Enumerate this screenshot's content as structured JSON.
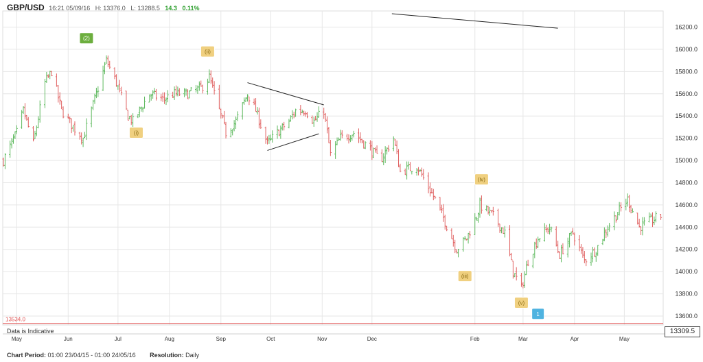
{
  "header": {
    "symbol": "GBP/USD",
    "time": "16:21 05/09/16",
    "high": "H: 13376.0",
    "low": "L: 13288.5",
    "change": "14.3",
    "change_pct": "0.11%",
    "positive_color": "#2a9d2a"
  },
  "footer": {
    "period_label": "Chart Period:",
    "period_value": "01:00 23/04/15 - 01:00 24/05/16",
    "resolution_label": "Resolution:",
    "resolution_value": "Daily",
    "indicative": "Data is Indicative"
  },
  "last_price": "13309.5",
  "chart_data": {
    "type": "ohlc",
    "y_axis": {
      "ticks": [
        13600,
        13800,
        14000,
        14200,
        14400,
        14600,
        14800,
        15000,
        15200,
        15400,
        15600,
        15800,
        16000,
        16200
      ],
      "tick_labels": [
        "13600.0",
        "13800.0",
        "14000.0",
        "14200.0",
        "14400.0",
        "14600.0",
        "14800.0",
        "15000.0",
        "15200.0",
        "15400.0",
        "15600.0",
        "15800.0",
        "16000.0",
        "16200.0"
      ]
    },
    "x_axis": {
      "range": [
        "2015-04-23",
        "2016-05-24"
      ],
      "months": [
        {
          "label": "May",
          "date": "2015-05-01"
        },
        {
          "label": "Jun",
          "date": "2015-06-01"
        },
        {
          "label": "Jul",
          "date": "2015-07-01"
        },
        {
          "label": "Aug",
          "date": "2015-08-01"
        },
        {
          "label": "Sep",
          "date": "2015-09-01"
        },
        {
          "label": "Oct",
          "date": "2015-10-01"
        },
        {
          "label": "Nov",
          "date": "2015-11-01"
        },
        {
          "label": "Dec",
          "date": "2015-12-01"
        },
        {
          "label": "Feb",
          "date": "2016-02-01"
        },
        {
          "label": "Mar",
          "date": "2016-03-01"
        },
        {
          "label": "Apr",
          "date": "2016-04-01"
        },
        {
          "label": "May",
          "date": "2016-05-01"
        }
      ]
    },
    "grid": true,
    "up_color": "#5cb85c",
    "down_color": "#e06060",
    "price_path": [
      {
        "date": "2015-04-23",
        "close": 15000
      },
      {
        "date": "2015-05-01",
        "close": 15250
      },
      {
        "date": "2015-05-05",
        "close": 15450
      },
      {
        "date": "2015-05-11",
        "close": 15150
      },
      {
        "date": "2015-05-18",
        "close": 15700
      },
      {
        "date": "2015-05-22",
        "close": 15800
      },
      {
        "date": "2015-05-28",
        "close": 15450
      },
      {
        "date": "2015-06-04",
        "close": 15300
      },
      {
        "date": "2015-06-10",
        "close": 15200
      },
      {
        "date": "2015-06-18",
        "close": 15600
      },
      {
        "date": "2015-06-24",
        "close": 15900
      },
      {
        "date": "2015-06-30",
        "close": 15700
      },
      {
        "date": "2015-07-07",
        "close": 15400
      },
      {
        "date": "2015-07-10",
        "close": 15350
      },
      {
        "date": "2015-07-20",
        "close": 15600
      },
      {
        "date": "2015-07-28",
        "close": 15550
      },
      {
        "date": "2015-08-04",
        "close": 15600
      },
      {
        "date": "2015-08-12",
        "close": 15600
      },
      {
        "date": "2015-08-20",
        "close": 15650
      },
      {
        "date": "2015-08-25",
        "close": 15750
      },
      {
        "date": "2015-08-31",
        "close": 15450
      },
      {
        "date": "2015-09-04",
        "close": 15250
      },
      {
        "date": "2015-09-10",
        "close": 15350
      },
      {
        "date": "2015-09-17",
        "close": 15600
      },
      {
        "date": "2015-09-22",
        "close": 15450
      },
      {
        "date": "2015-09-29",
        "close": 15150
      },
      {
        "date": "2015-10-05",
        "close": 15250
      },
      {
        "date": "2015-10-12",
        "close": 15350
      },
      {
        "date": "2015-10-16",
        "close": 15450
      },
      {
        "date": "2015-10-22",
        "close": 15450
      },
      {
        "date": "2015-10-27",
        "close": 15350
      },
      {
        "date": "2015-11-02",
        "close": 15450
      },
      {
        "date": "2015-11-06",
        "close": 15050
      },
      {
        "date": "2015-11-12",
        "close": 15200
      },
      {
        "date": "2015-11-20",
        "close": 15250
      },
      {
        "date": "2015-11-30",
        "close": 15100
      },
      {
        "date": "2015-12-06",
        "close": 15000
      },
      {
        "date": "2015-12-14",
        "close": 15200
      },
      {
        "date": "2015-12-18",
        "close": 14900
      },
      {
        "date": "2015-12-28",
        "close": 14950
      },
      {
        "date": "2016-01-08",
        "close": 14650
      },
      {
        "date": "2016-01-14",
        "close": 14450
      },
      {
        "date": "2016-01-21",
        "close": 14200
      },
      {
        "date": "2016-01-27",
        "close": 14300
      },
      {
        "date": "2016-02-02",
        "close": 14500
      },
      {
        "date": "2016-02-04",
        "close": 14600
      },
      {
        "date": "2016-02-12",
        "close": 14500
      },
      {
        "date": "2016-02-19",
        "close": 14350
      },
      {
        "date": "2016-02-24",
        "close": 14000
      },
      {
        "date": "2016-02-29",
        "close": 13850
      },
      {
        "date": "2016-03-04",
        "close": 14100
      },
      {
        "date": "2016-03-10",
        "close": 14300
      },
      {
        "date": "2016-03-17",
        "close": 14400
      },
      {
        "date": "2016-03-23",
        "close": 14150
      },
      {
        "date": "2016-03-31",
        "close": 14350
      },
      {
        "date": "2016-04-07",
        "close": 14100
      },
      {
        "date": "2016-04-14",
        "close": 14200
      },
      {
        "date": "2016-04-21",
        "close": 14400
      },
      {
        "date": "2016-04-28",
        "close": 14550
      },
      {
        "date": "2016-05-03",
        "close": 14650
      },
      {
        "date": "2016-05-10",
        "close": 14400
      },
      {
        "date": "2016-05-16",
        "close": 14450
      },
      {
        "date": "2016-05-23",
        "close": 14500
      }
    ],
    "reference_line": {
      "value": 13534.0,
      "label": "13534.0",
      "color": "#e05050"
    },
    "trendlines": [
      {
        "points": [
          {
            "date": "2015-09-17",
            "value": 15700
          },
          {
            "date": "2015-11-02",
            "value": 15500
          }
        ]
      },
      {
        "points": [
          {
            "date": "2015-09-29",
            "value": 15090
          },
          {
            "date": "2015-10-30",
            "value": 15240
          }
        ]
      },
      {
        "points": [
          {
            "date": "2015-12-13",
            "value": 16320
          },
          {
            "date": "2016-03-22",
            "value": 16190
          }
        ]
      }
    ],
    "annotations": [
      {
        "label": "(2)",
        "date": "2015-06-12",
        "value": 16100,
        "color": "#6cae3e",
        "text_color": "#ffffff"
      },
      {
        "label": "(i)",
        "date": "2015-07-12",
        "value": 15250,
        "color": "#f0d080",
        "text_color": "#8a6a10"
      },
      {
        "label": "(ii)",
        "date": "2015-08-24",
        "value": 15980,
        "color": "#f0d080",
        "text_color": "#8a6a10"
      },
      {
        "label": "(iv)",
        "date": "2016-02-05",
        "value": 14830,
        "color": "#f0d080",
        "text_color": "#8a6a10"
      },
      {
        "label": "(iii)",
        "date": "2016-01-26",
        "value": 13960,
        "color": "#f0d080",
        "text_color": "#8a6a10"
      },
      {
        "label": "(v)",
        "date": "2016-02-29",
        "value": 13720,
        "color": "#f0d080",
        "text_color": "#8a6a10"
      },
      {
        "label": "1",
        "date": "2016-03-10",
        "value": 13620,
        "color": "#4fb3e0",
        "text_color": "#ffffff"
      }
    ]
  }
}
